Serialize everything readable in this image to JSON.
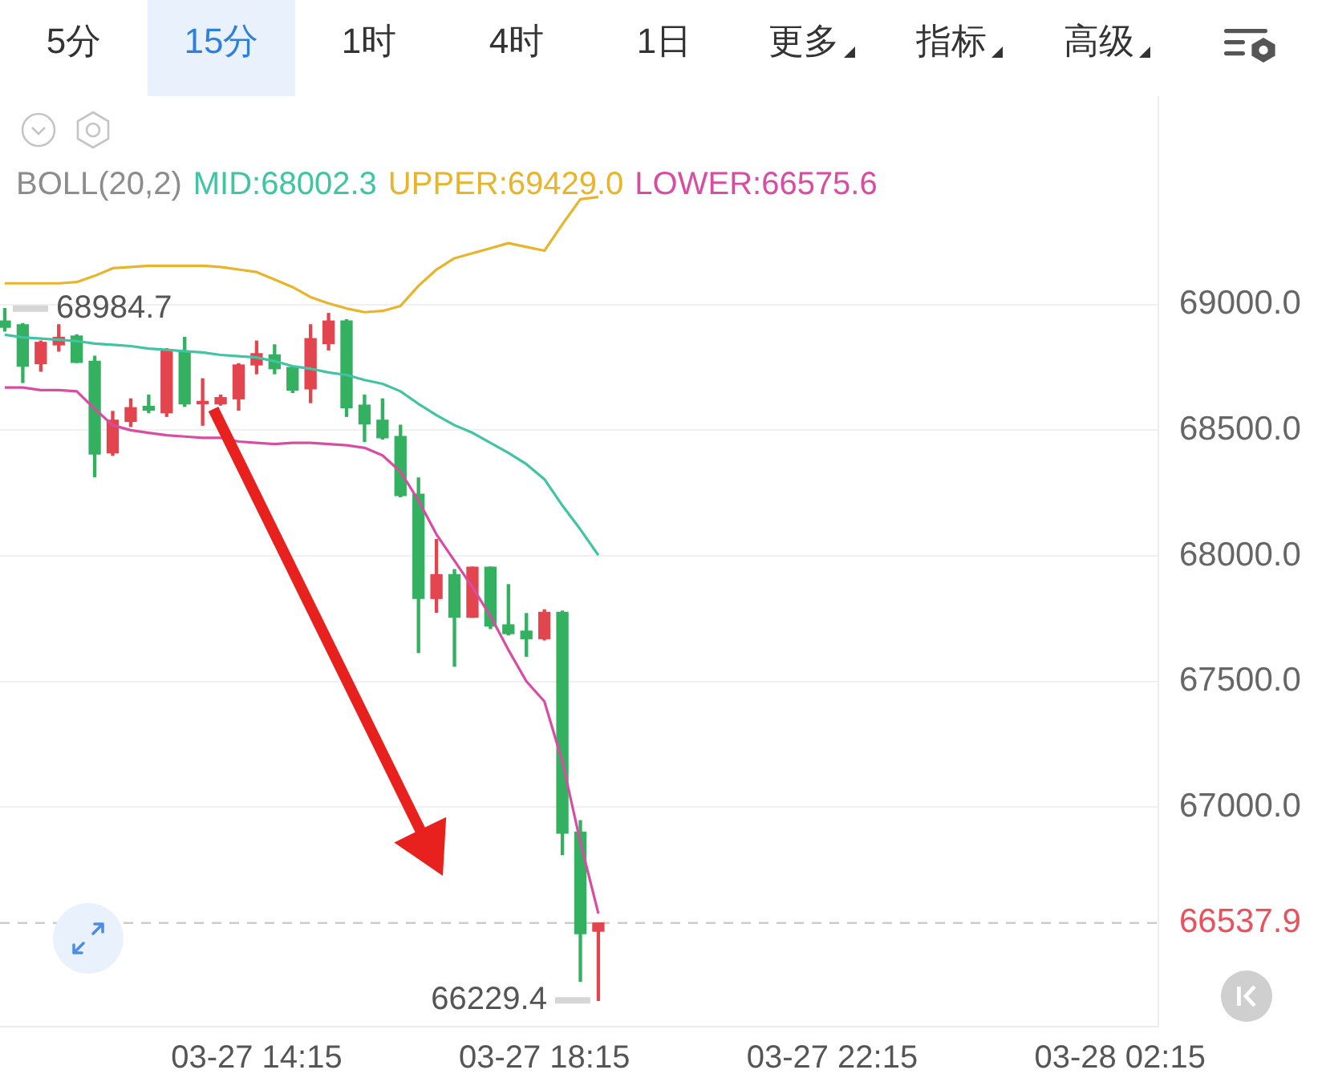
{
  "chart_data": {
    "type": "candlestick",
    "legend_title": "BOLL(20,2)",
    "legend": "top left",
    "grid": "y",
    "x": [
      "--03-27T10:45",
      "--03-27T11:00",
      "--03-27T11:15",
      "--03-27T11:30",
      "--03-27T11:45",
      "--03-27T12:00",
      "--03-27T12:15",
      "--03-27T12:30",
      "--03-27T12:45",
      "--03-27T13:00",
      "--03-27T13:15",
      "--03-27T13:30",
      "--03-27T13:45",
      "--03-27T14:00",
      "--03-27T14:15",
      "--03-27T14:30",
      "--03-27T14:45",
      "--03-27T15:00",
      "--03-27T15:15",
      "--03-27T15:30",
      "--03-27T15:45",
      "--03-27T16:00",
      "--03-27T16:15",
      "--03-27T16:30",
      "--03-27T16:45",
      "--03-27T17:00",
      "--03-27T17:15",
      "--03-27T17:30",
      "--03-27T17:45",
      "--03-27T18:00",
      "--03-27T18:15",
      "--03-27T18:30",
      "--03-27T18:45",
      "--03-27T19:00"
    ],
    "ohlc": [
      [
        68935,
        68984.7,
        68895,
        68910
      ],
      [
        68920,
        68925,
        68690,
        68755
      ],
      [
        68765,
        68855,
        68735,
        68850
      ],
      [
        68840,
        68920,
        68815,
        68870
      ],
      [
        68875,
        68880,
        68770,
        68770
      ],
      [
        68775,
        68795,
        68315,
        68405
      ],
      [
        68410,
        68575,
        68400,
        68540
      ],
      [
        68535,
        68625,
        68515,
        68590
      ],
      [
        68595,
        68640,
        68570,
        68580
      ],
      [
        68570,
        68825,
        68555,
        68820
      ],
      [
        68815,
        68870,
        68595,
        68605
      ],
      [
        68605,
        68705,
        68520,
        68615
      ],
      [
        68605,
        68640,
        68600,
        68630
      ],
      [
        68625,
        68765,
        68580,
        68760
      ],
      [
        68760,
        68855,
        68725,
        68805
      ],
      [
        68800,
        68840,
        68725,
        68745
      ],
      [
        68750,
        68755,
        68650,
        68660
      ],
      [
        68665,
        68920,
        68610,
        68865
      ],
      [
        68845,
        68965,
        68820,
        68935
      ],
      [
        68935,
        68940,
        68555,
        68590
      ],
      [
        68600,
        68640,
        68455,
        68525
      ],
      [
        68540,
        68625,
        68465,
        68470
      ],
      [
        68475,
        68520,
        68235,
        68240
      ],
      [
        68245,
        68310,
        67615,
        67830
      ],
      [
        67830,
        68065,
        67775,
        67925
      ],
      [
        67925,
        67945,
        67560,
        67755
      ],
      [
        67755,
        67955,
        67755,
        67955
      ],
      [
        67955,
        67955,
        67710,
        67720
      ],
      [
        67725,
        67885,
        67685,
        67690
      ],
      [
        67700,
        67770,
        67600,
        67670
      ],
      [
        67670,
        67785,
        67665,
        67775
      ],
      [
        67775,
        67780,
        66810,
        66895
      ],
      [
        66900,
        66945,
        66305,
        66495
      ],
      [
        66505,
        66537.9,
        66229.4,
        66537.9
      ]
    ],
    "colors": [
      "#33b060",
      "#33b060",
      "#e3454f",
      "#e3454f",
      "#33b060",
      "#33b060",
      "#e3454f",
      "#e3454f",
      "#33b060",
      "#e3454f",
      "#33b060",
      "#e3454f",
      "#e3454f",
      "#e3454f",
      "#e3454f",
      "#33b060",
      "#33b060",
      "#e3454f",
      "#e3454f",
      "#33b060",
      "#33b060",
      "#33b060",
      "#33b060",
      "#33b060",
      "#e3454f",
      "#33b060",
      "#e3454f",
      "#33b060",
      "#33b060",
      "#33b060",
      "#e3454f",
      "#33b060",
      "#33b060",
      "#e3454f"
    ],
    "series": [
      {
        "name": "MID:68002.3",
        "type": "line",
        "color": "#40c4a4",
        "values": [
          68880,
          68870,
          68865,
          68860,
          68855,
          68845,
          68840,
          68835,
          68825,
          68820,
          68815,
          68810,
          68800,
          68795,
          68790,
          68775,
          68755,
          68745,
          68730,
          68720,
          68700,
          68685,
          68655,
          68605,
          68560,
          68520,
          68490,
          68450,
          68410,
          68365,
          68305,
          68200,
          68105,
          68002.3
        ]
      },
      {
        "name": "UPPER:69429.0",
        "type": "line",
        "color": "#e8b42a",
        "values": [
          69085,
          69085,
          69085,
          69085,
          69090,
          69115,
          69145,
          69150,
          69155,
          69155,
          69155,
          69155,
          69150,
          69140,
          69130,
          69100,
          69070,
          69030,
          69005,
          68985,
          68970,
          68975,
          68995,
          69075,
          69140,
          69185,
          69205,
          69225,
          69245,
          69230,
          69215,
          69320,
          69420,
          69429
        ]
      },
      {
        "name": "LOWER:66575.6",
        "type": "line",
        "color": "#d84ca2",
        "values": [
          68670,
          68670,
          68660,
          68660,
          68655,
          68585,
          68520,
          68500,
          68490,
          68480,
          68475,
          68470,
          68470,
          68455,
          68450,
          68445,
          68450,
          68450,
          68445,
          68440,
          68430,
          68400,
          68335,
          68220,
          68085,
          67980,
          67875,
          67760,
          67625,
          67500,
          67420,
          67180,
          66860,
          66575.6
        ]
      }
    ],
    "xlim": [
      "--03-27T10:41",
      "--03-28T02:47"
    ],
    "xticks": [
      {
        "value": "--03-27T14:15",
        "label": "03-27 14:15"
      },
      {
        "value": "--03-27T18:15",
        "label": "03-27 18:15"
      },
      {
        "value": "--03-27T22:15",
        "label": "03-27 22:15"
      },
      {
        "value": "--03-28T02:15",
        "label": "03-28 02:15"
      }
    ],
    "ylim": [
      66125,
      69830
    ],
    "yticks": [
      {
        "value": 67000,
        "label": "67000.0"
      },
      {
        "value": 67500,
        "label": "67500.0"
      },
      {
        "value": 68000,
        "label": "68000.0"
      },
      {
        "value": 68500,
        "label": "68500.0"
      },
      {
        "value": 69000,
        "label": "69000.0"
      }
    ],
    "ref_lines": [
      {
        "axis": "y",
        "value": 66537.9,
        "color": "#cccccc",
        "line_style": "dashed"
      }
    ],
    "annotations": [
      {
        "text": "68984.7",
        "x": "--03-27T10:45",
        "y": 68984.7
      },
      {
        "text": "66229.4",
        "x": "--03-27T19:00",
        "y": 66229.4
      },
      "5分",
      "15分",
      "1时",
      "4时",
      "1日",
      "更多",
      "指标",
      "高级",
      "66537.9"
    ]
  }
}
